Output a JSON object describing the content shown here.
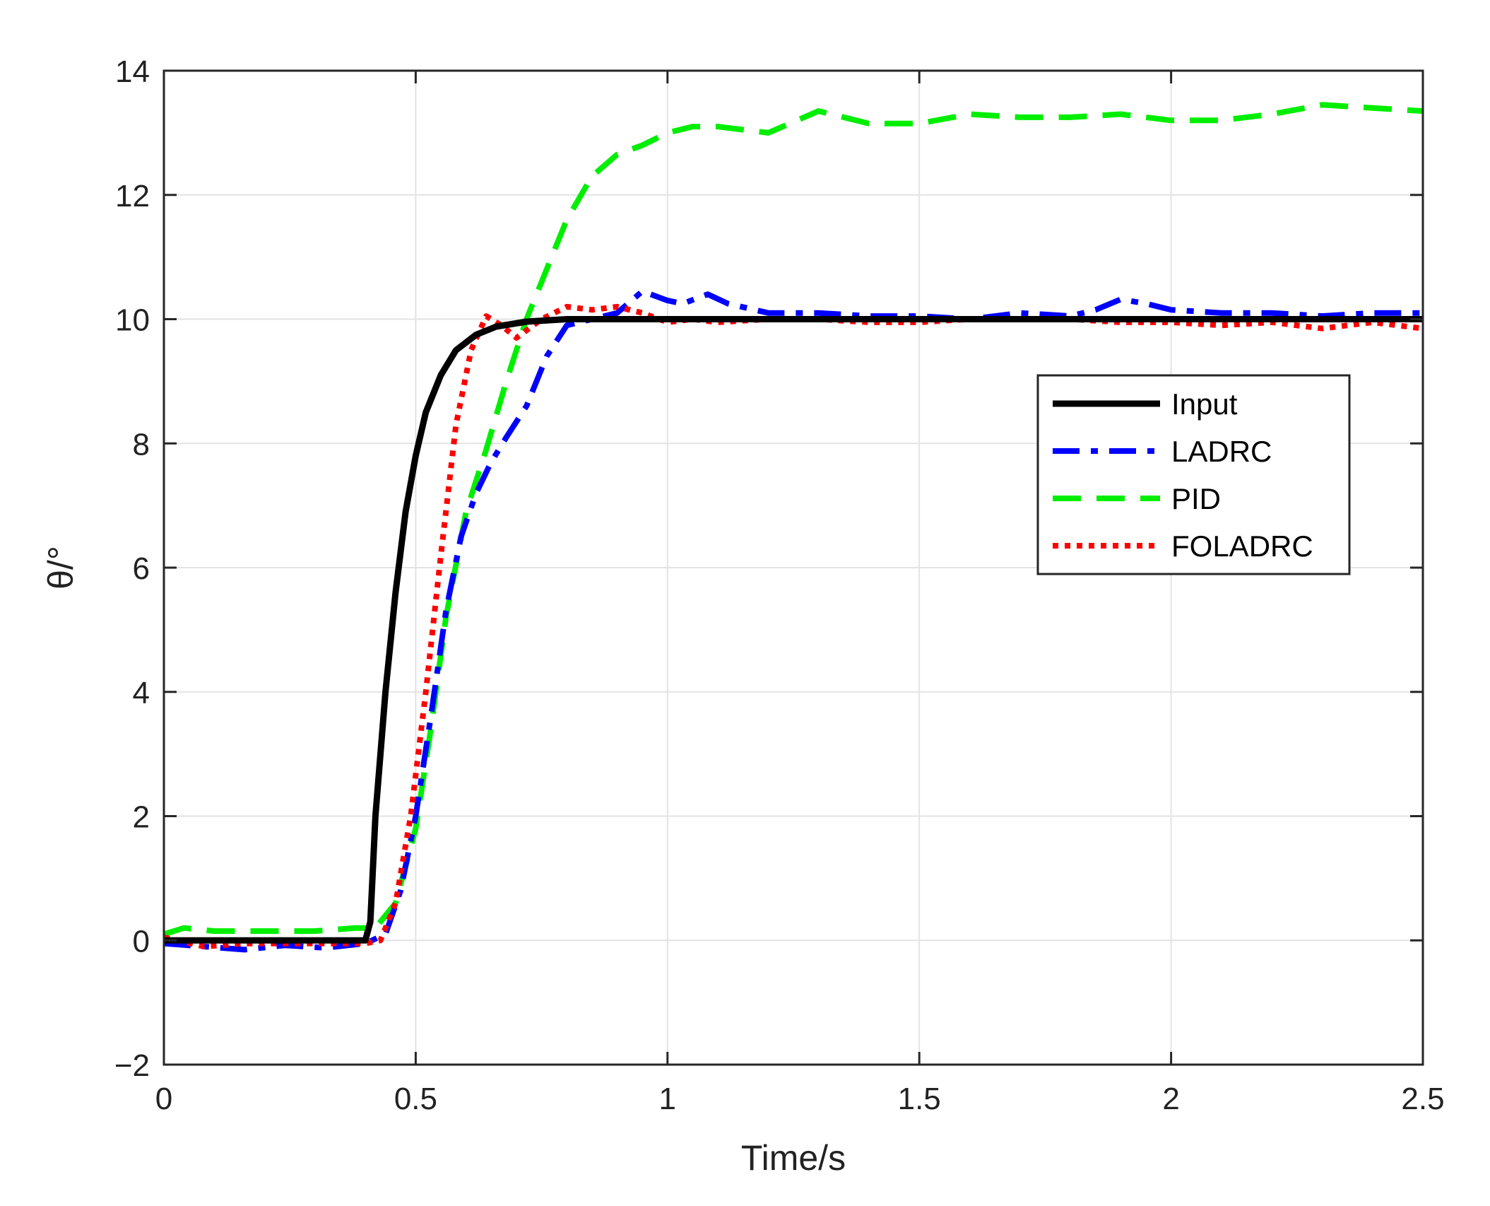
{
  "chart_data": {
    "type": "line",
    "title": "",
    "xlabel": "Time/s",
    "ylabel": "θ/°",
    "xlim": [
      0,
      2.5
    ],
    "ylim": [
      -2,
      14
    ],
    "xticks": [
      0,
      0.5,
      1,
      1.5,
      2,
      2.5
    ],
    "xtick_labels": [
      "0",
      "0.5",
      "1",
      "1.5",
      "2",
      "2.5"
    ],
    "yticks": [
      -2,
      0,
      2,
      4,
      6,
      8,
      10,
      12,
      14
    ],
    "ytick_labels": [
      "−2",
      "0",
      "2",
      "4",
      "6",
      "8",
      "10",
      "12",
      "14"
    ],
    "grid": true,
    "legend_position": "right",
    "series": [
      {
        "name": "Input",
        "color": "#000000",
        "style": "solid",
        "points": [
          [
            0,
            0
          ],
          [
            0.4,
            0
          ],
          [
            0.41,
            0.3
          ],
          [
            0.42,
            2.0
          ],
          [
            0.44,
            4.0
          ],
          [
            0.46,
            5.6
          ],
          [
            0.48,
            6.9
          ],
          [
            0.5,
            7.8
          ],
          [
            0.52,
            8.5
          ],
          [
            0.55,
            9.1
          ],
          [
            0.58,
            9.5
          ],
          [
            0.62,
            9.75
          ],
          [
            0.66,
            9.88
          ],
          [
            0.72,
            9.96
          ],
          [
            0.8,
            10.0
          ],
          [
            1.0,
            10.0
          ],
          [
            1.5,
            10.0
          ],
          [
            2.0,
            10.0
          ],
          [
            2.5,
            10.0
          ]
        ]
      },
      {
        "name": "LADRC",
        "color": "#0000ff",
        "style": "dashdot",
        "points": [
          [
            0,
            -0.05
          ],
          [
            0.08,
            -0.1
          ],
          [
            0.16,
            -0.15
          ],
          [
            0.24,
            -0.08
          ],
          [
            0.32,
            -0.12
          ],
          [
            0.4,
            -0.05
          ],
          [
            0.44,
            0.1
          ],
          [
            0.47,
            0.8
          ],
          [
            0.5,
            2.0
          ],
          [
            0.53,
            3.6
          ],
          [
            0.56,
            5.3
          ],
          [
            0.59,
            6.5
          ],
          [
            0.62,
            7.2
          ],
          [
            0.65,
            7.7
          ],
          [
            0.68,
            8.1
          ],
          [
            0.72,
            8.6
          ],
          [
            0.76,
            9.4
          ],
          [
            0.8,
            9.9
          ],
          [
            0.85,
            10.0
          ],
          [
            0.9,
            10.1
          ],
          [
            0.95,
            10.45
          ],
          [
            1.0,
            10.3
          ],
          [
            1.03,
            10.25
          ],
          [
            1.08,
            10.4
          ],
          [
            1.12,
            10.25
          ],
          [
            1.2,
            10.1
          ],
          [
            1.3,
            10.1
          ],
          [
            1.4,
            10.05
          ],
          [
            1.5,
            10.05
          ],
          [
            1.6,
            10.0
          ],
          [
            1.7,
            10.1
          ],
          [
            1.8,
            10.05
          ],
          [
            1.85,
            10.15
          ],
          [
            1.9,
            10.32
          ],
          [
            1.95,
            10.25
          ],
          [
            2.0,
            10.15
          ],
          [
            2.1,
            10.1
          ],
          [
            2.2,
            10.1
          ],
          [
            2.3,
            10.05
          ],
          [
            2.4,
            10.1
          ],
          [
            2.5,
            10.1
          ]
        ]
      },
      {
        "name": "PID",
        "color": "#00ee00",
        "style": "dashed",
        "points": [
          [
            0,
            0.1
          ],
          [
            0.04,
            0.2
          ],
          [
            0.1,
            0.15
          ],
          [
            0.2,
            0.15
          ],
          [
            0.3,
            0.15
          ],
          [
            0.38,
            0.2
          ],
          [
            0.42,
            0.2
          ],
          [
            0.46,
            0.6
          ],
          [
            0.5,
            1.8
          ],
          [
            0.53,
            3.4
          ],
          [
            0.56,
            5.2
          ],
          [
            0.6,
            6.9
          ],
          [
            0.64,
            7.9
          ],
          [
            0.68,
            9.0
          ],
          [
            0.72,
            10.0
          ],
          [
            0.76,
            10.8
          ],
          [
            0.8,
            11.6
          ],
          [
            0.85,
            12.3
          ],
          [
            0.9,
            12.65
          ],
          [
            0.95,
            12.8
          ],
          [
            1.0,
            13.0
          ],
          [
            1.05,
            13.1
          ],
          [
            1.1,
            13.1
          ],
          [
            1.2,
            13.0
          ],
          [
            1.3,
            13.35
          ],
          [
            1.4,
            13.15
          ],
          [
            1.5,
            13.15
          ],
          [
            1.6,
            13.3
          ],
          [
            1.7,
            13.25
          ],
          [
            1.8,
            13.25
          ],
          [
            1.9,
            13.3
          ],
          [
            2.0,
            13.2
          ],
          [
            2.1,
            13.2
          ],
          [
            2.2,
            13.3
          ],
          [
            2.3,
            13.45
          ],
          [
            2.4,
            13.4
          ],
          [
            2.5,
            13.35
          ]
        ]
      },
      {
        "name": "FOLADRC",
        "color": "#ff0000",
        "style": "dotted",
        "points": [
          [
            0,
            0.05
          ],
          [
            0.08,
            -0.1
          ],
          [
            0.16,
            -0.05
          ],
          [
            0.24,
            -0.05
          ],
          [
            0.32,
            -0.05
          ],
          [
            0.4,
            -0.05
          ],
          [
            0.43,
            0.0
          ],
          [
            0.46,
            0.6
          ],
          [
            0.49,
            2.0
          ],
          [
            0.52,
            4.0
          ],
          [
            0.55,
            6.2
          ],
          [
            0.58,
            8.3
          ],
          [
            0.61,
            9.5
          ],
          [
            0.64,
            10.05
          ],
          [
            0.67,
            9.9
          ],
          [
            0.7,
            9.7
          ],
          [
            0.75,
            10.0
          ],
          [
            0.8,
            10.2
          ],
          [
            0.85,
            10.15
          ],
          [
            0.9,
            10.2
          ],
          [
            0.95,
            10.1
          ],
          [
            1.0,
            9.95
          ],
          [
            1.05,
            10.0
          ],
          [
            1.1,
            9.95
          ],
          [
            1.2,
            10.0
          ],
          [
            1.3,
            10.0
          ],
          [
            1.4,
            9.95
          ],
          [
            1.5,
            9.95
          ],
          [
            1.6,
            10.0
          ],
          [
            1.7,
            10.0
          ],
          [
            1.8,
            10.0
          ],
          [
            1.9,
            9.95
          ],
          [
            2.0,
            9.95
          ],
          [
            2.1,
            9.9
          ],
          [
            2.2,
            9.95
          ],
          [
            2.3,
            9.85
          ],
          [
            2.4,
            9.95
          ],
          [
            2.5,
            9.85
          ]
        ]
      }
    ]
  }
}
